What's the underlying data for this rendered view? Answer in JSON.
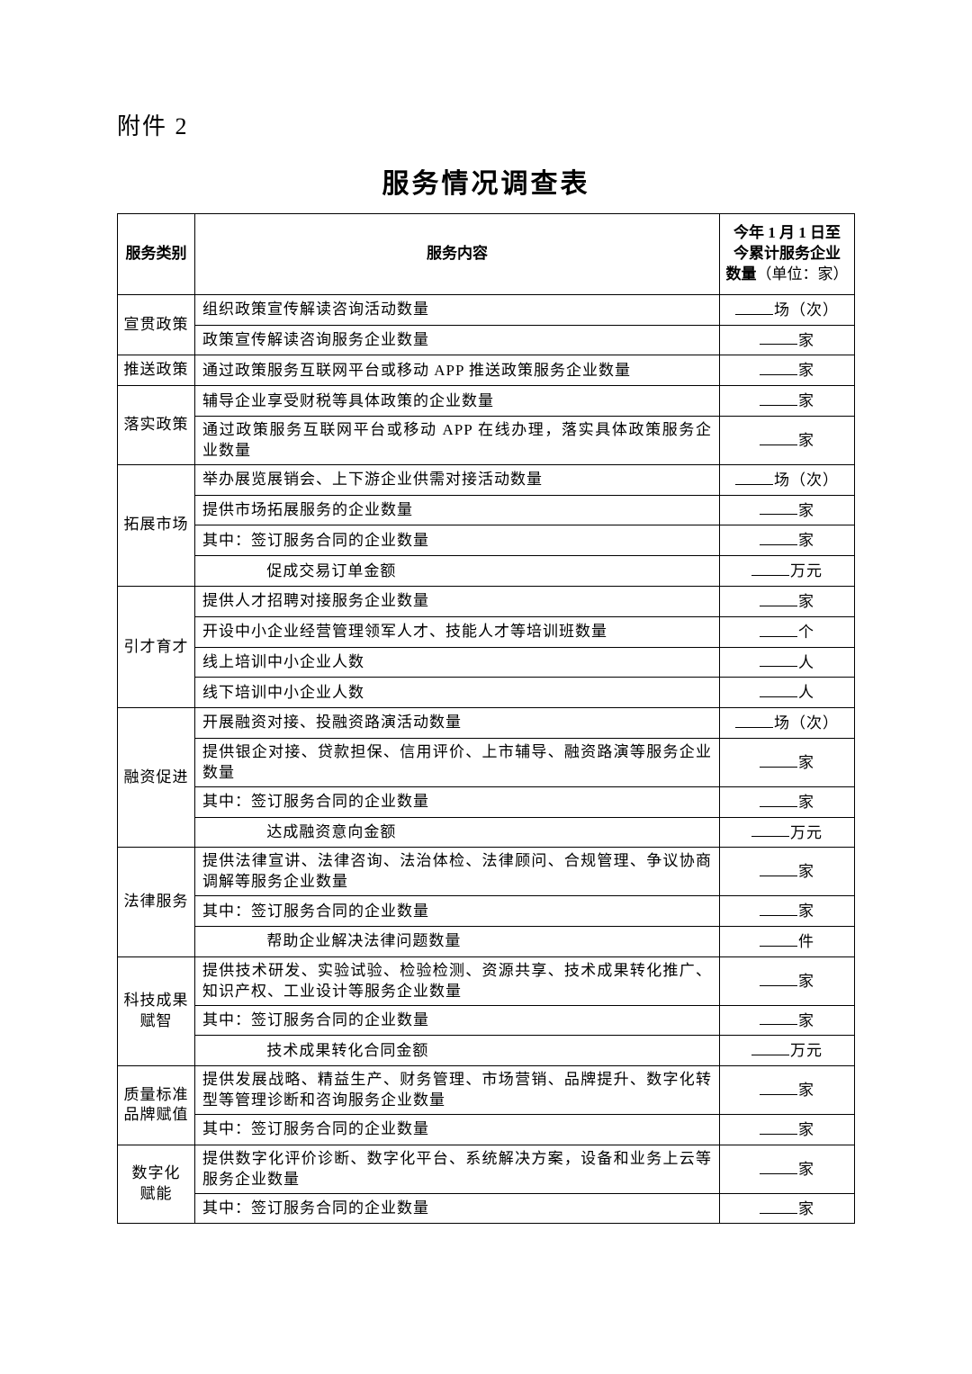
{
  "attachment_label": "附件 2",
  "title": "服务情况调查表",
  "header": {
    "col1": "服务类别",
    "col2": "服务内容",
    "col3_line1": "今年 1 月 1 日至",
    "col3_line2": "今累计服务企业",
    "col3_line3_bold": "数量",
    "col3_line3_unit": "（单位：家）"
  },
  "rows": [
    {
      "cat": "宣贯政策",
      "items": [
        {
          "text": "组织政策宣传解读咨询活动数量",
          "unit": "场（次）"
        },
        {
          "text": "政策宣传解读咨询服务企业数量",
          "unit": "家"
        }
      ]
    },
    {
      "cat": "推送政策",
      "items": [
        {
          "text": "通过政策服务互联网平台或移动 APP 推送政策服务企业数量",
          "unit": "家"
        }
      ]
    },
    {
      "cat": "落实政策",
      "items": [
        {
          "text": "辅导企业享受财税等具体政策的企业数量",
          "unit": "家"
        },
        {
          "text": "通过政策服务互联网平台或移动 APP 在线办理，落实具体政策服务企业数量",
          "unit": "家"
        }
      ]
    },
    {
      "cat": "拓展市场",
      "items": [
        {
          "text": "举办展览展销会、上下游企业供需对接活动数量",
          "unit": "场（次）"
        },
        {
          "text": "提供市场拓展服务的企业数量",
          "unit": "家"
        },
        {
          "text": "其中：签订服务合同的企业数量",
          "unit": "家",
          "indent": 1
        },
        {
          "text": "促成交易订单金额",
          "unit": "万元",
          "indent": 2
        }
      ]
    },
    {
      "cat": "引才育才",
      "items": [
        {
          "text": "提供人才招聘对接服务企业数量",
          "unit": "家"
        },
        {
          "text": "开设中小企业经营管理领军人才、技能人才等培训班数量",
          "unit": "个"
        },
        {
          "text": "线上培训中小企业人数",
          "unit": "人"
        },
        {
          "text": "线下培训中小企业人数",
          "unit": "人"
        }
      ]
    },
    {
      "cat": "融资促进",
      "items": [
        {
          "text": "开展融资对接、投融资路演活动数量",
          "unit": "场（次）"
        },
        {
          "text": "提供银企对接、贷款担保、信用评价、上市辅导、融资路演等服务企业数量",
          "unit": "家"
        },
        {
          "text": "其中：签订服务合同的企业数量",
          "unit": "家",
          "indent": 1
        },
        {
          "text": "达成融资意向金额",
          "unit": "万元",
          "indent": 2
        }
      ]
    },
    {
      "cat": "法律服务",
      "items": [
        {
          "text": "提供法律宣讲、法律咨询、法治体检、法律顾问、合规管理、争议协商调解等服务企业数量",
          "unit": "家"
        },
        {
          "text": "其中：签订服务合同的企业数量",
          "unit": "家",
          "indent": 1
        },
        {
          "text": "帮助企业解决法律问题数量",
          "unit": "件",
          "indent": 2
        }
      ]
    },
    {
      "cat": "科技成果赋智",
      "catBreak": "科技成果<br>赋智",
      "items": [
        {
          "text": "提供技术研发、实验试验、检验检测、资源共享、技术成果转化推广、知识产权、工业设计等服务企业数量",
          "unit": "家"
        },
        {
          "text": "其中：签订服务合同的企业数量",
          "unit": "家",
          "indent": 1
        },
        {
          "text": "技术成果转化合同金额",
          "unit": "万元",
          "indent": 2
        }
      ]
    },
    {
      "cat": "质量标准品牌赋值",
      "catBreak": "质量标准<br>品牌赋值",
      "items": [
        {
          "text": "提供发展战略、精益生产、财务管理、市场营销、品牌提升、数字化转型等管理诊断和咨询服务企业数量",
          "unit": "家"
        },
        {
          "text": "其中：签订服务合同的企业数量",
          "unit": "家",
          "indent": 1
        }
      ]
    },
    {
      "cat": "数字化赋能",
      "catBreak": "数字化<br>赋能",
      "items": [
        {
          "text": "提供数字化评价诊断、数字化平台、系统解决方案，设备和业务上云等服务企业数量",
          "unit": "家"
        },
        {
          "text": "其中：签订服务合同的企业数量",
          "unit": "家",
          "indent": 1
        }
      ]
    }
  ]
}
